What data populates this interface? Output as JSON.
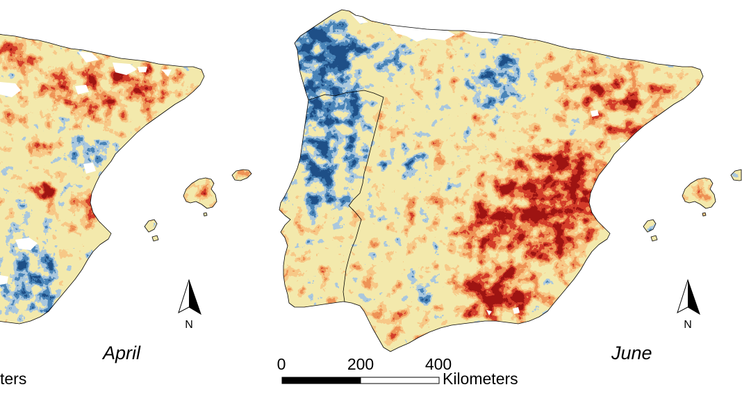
{
  "left_panel": {
    "month_label": "April",
    "north_label": "N",
    "scale_unit_fragment": "ters"
  },
  "right_panel": {
    "month_label": "June",
    "north_label": "N"
  },
  "scale_bar": {
    "ticks": [
      "0",
      "200",
      "400"
    ],
    "unit": "Kilometers"
  },
  "colors": {
    "palette": [
      "#1e4f88",
      "#4a84b8",
      "#a9c8de",
      "#f3e9ac",
      "#f7c988",
      "#ef9457",
      "#d43d29",
      "#9e1512"
    ],
    "no_data": "#ffffff",
    "outline": "#000000"
  }
}
